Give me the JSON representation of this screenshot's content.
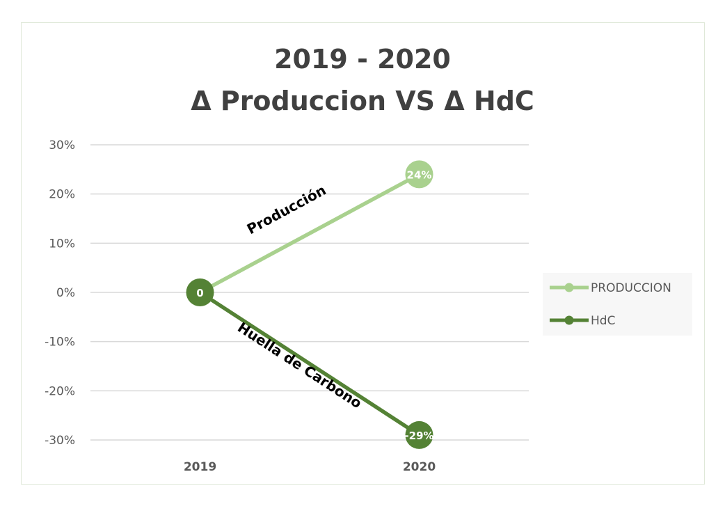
{
  "chart_data": {
    "type": "line",
    "title_lines": [
      "2019 - 2020",
      "Δ Produccion VS Δ HdC"
    ],
    "categories": [
      "2019",
      "2020"
    ],
    "y_ticks": [
      "30%",
      "20%",
      "10%",
      "0%",
      "-10%",
      "-20%",
      "-30%"
    ],
    "ylim": [
      -0.3,
      0.3
    ],
    "grid": true,
    "legend_position": "right",
    "series": [
      {
        "name": "PRODUCCION",
        "values": [
          0,
          0.24
        ],
        "data_labels": [
          "",
          "24%"
        ],
        "color": "#a9d18e",
        "annotation": "Producción"
      },
      {
        "name": "HdC",
        "values": [
          0,
          -0.29
        ],
        "data_labels": [
          "0",
          "-29%"
        ],
        "color": "#548235",
        "annotation": "Huella de Carbono"
      }
    ]
  }
}
